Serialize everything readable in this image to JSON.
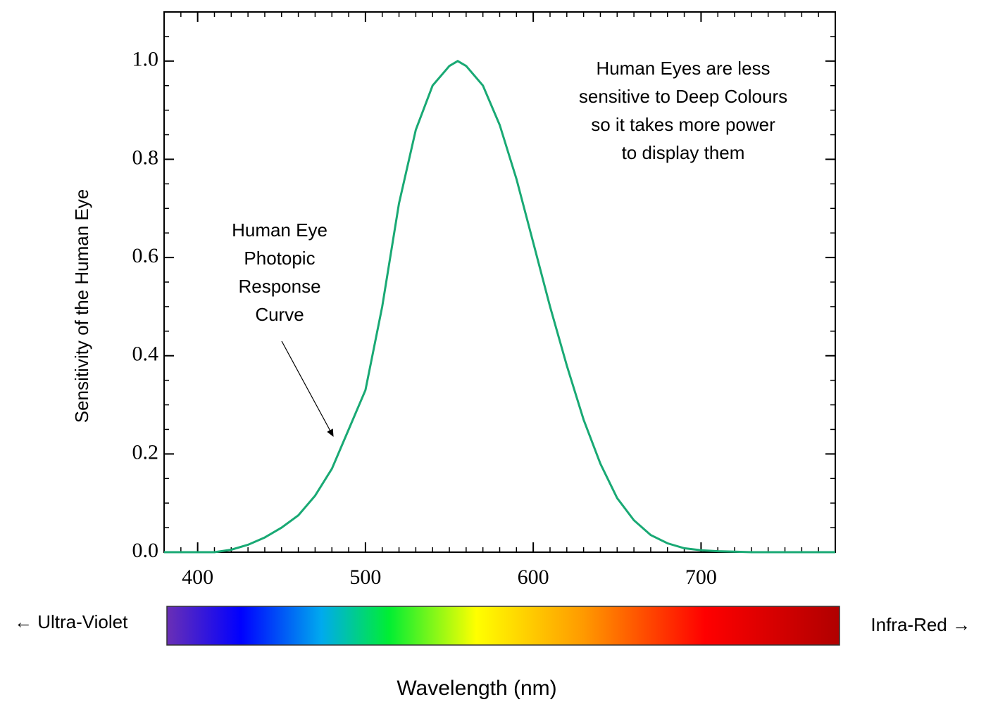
{
  "chart_data": {
    "type": "line",
    "y_label": "Sensitivity of the Human Eye",
    "x_label": "Wavelength (nm)",
    "curve_note": [
      "Human Eye",
      "Photopic",
      "Response",
      "Curve"
    ],
    "note": [
      "Human Eyes are less",
      "sensitive to Deep Colours",
      "so it takes more power",
      "to display them"
    ],
    "left_label": "← Ultra-Violet",
    "right_label": "Infra-Red →",
    "x": [
      380,
      390,
      400,
      410,
      420,
      430,
      440,
      450,
      460,
      470,
      480,
      490,
      500,
      510,
      520,
      530,
      540,
      550,
      555,
      560,
      570,
      580,
      590,
      600,
      610,
      620,
      630,
      640,
      650,
      660,
      670,
      680,
      690,
      700,
      710,
      720,
      730,
      740,
      750,
      760,
      770,
      780
    ],
    "series": [
      {
        "name": "Human Eye Photopic Response Curve",
        "color": "#19a974",
        "values": [
          0,
          0,
          0,
          0,
          0.005,
          0.015,
          0.03,
          0.05,
          0.075,
          0.115,
          0.17,
          0.25,
          0.33,
          0.5,
          0.71,
          0.86,
          0.95,
          0.99,
          1.0,
          0.99,
          0.95,
          0.87,
          0.76,
          0.63,
          0.5,
          0.38,
          0.27,
          0.18,
          0.11,
          0.065,
          0.035,
          0.018,
          0.008,
          0.004,
          0.002,
          0.001,
          0,
          0,
          0,
          0,
          0,
          0
        ]
      }
    ],
    "xlim": [
      380,
      780
    ],
    "ylim": [
      0,
      1.1
    ],
    "xticks": [
      400,
      500,
      600,
      700
    ],
    "yticks": [
      {
        "value": 0,
        "label": "0.0"
      },
      0.2,
      0.4,
      0.6,
      0.8,
      {
        "value": 1,
        "label": "1.0"
      }
    ]
  }
}
